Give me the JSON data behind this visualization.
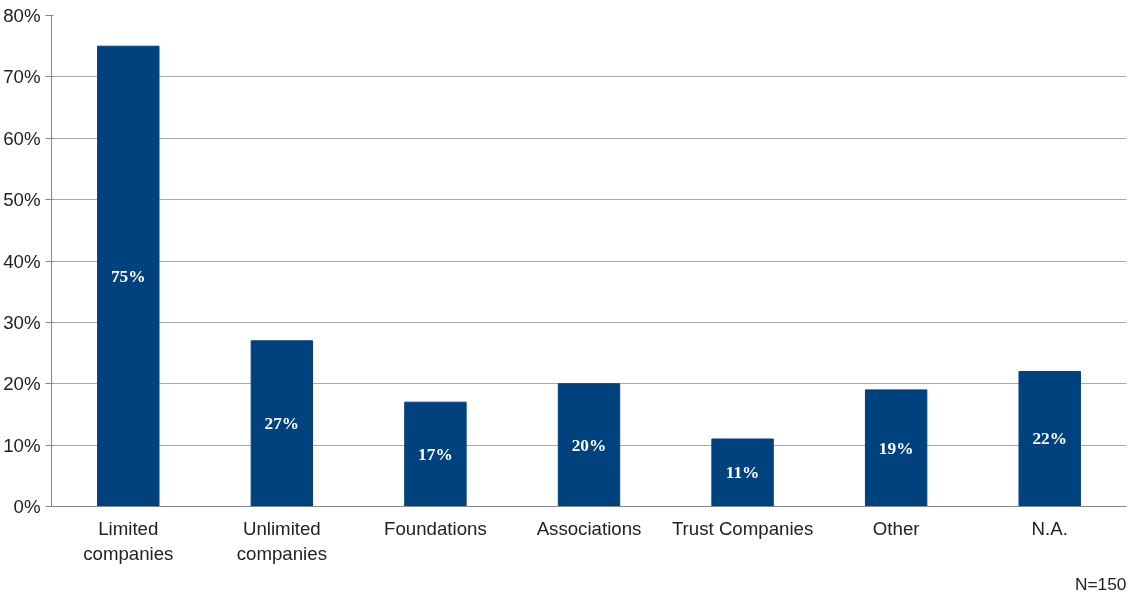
{
  "chart_data": {
    "type": "bar",
    "categories": [
      "Limited companies",
      "Unlimited companies",
      "Foundations",
      "Associations",
      "Trust Companies",
      "Other",
      "N.A."
    ],
    "values": [
      75,
      27,
      17,
      20,
      11,
      19,
      22
    ],
    "color": "#00427e",
    "ylim": [
      0,
      80
    ],
    "yticks": [
      {
        "value": 0,
        "label": "0%"
      },
      {
        "value": 10,
        "label": "10%"
      },
      {
        "value": 20,
        "label": "20%"
      },
      {
        "value": 30,
        "label": "30%"
      },
      {
        "value": 40,
        "label": "40%"
      },
      {
        "value": 50,
        "label": "50%"
      },
      {
        "value": 60,
        "label": "60%"
      },
      {
        "value": 70,
        "label": "70%"
      },
      {
        "value": 80,
        "label": "80%"
      }
    ],
    "value_labels": [
      "75%",
      "27%",
      "17%",
      "20%",
      "11%",
      "19%",
      "22%"
    ],
    "grid": "y",
    "annotations": [
      "N=150"
    ]
  }
}
